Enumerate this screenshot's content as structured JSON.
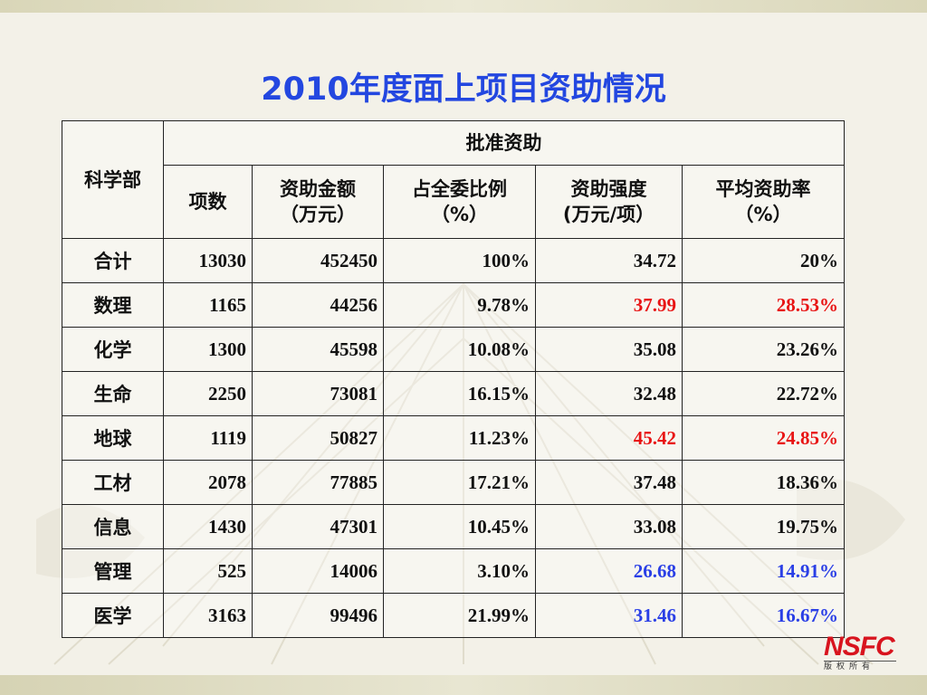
{
  "title": "2010年度面上项目资助情况",
  "table": {
    "corner_header": "科学部",
    "group_header": "批准资助",
    "columns": [
      {
        "line1": "项数",
        "line2": ""
      },
      {
        "line1": "资助金额",
        "line2": "（万元）"
      },
      {
        "line1": "占全委比例",
        "line2": "（%）"
      },
      {
        "line1": "资助强度",
        "line2": "(万元/项）"
      },
      {
        "line1": "平均资助率",
        "line2": "（%）"
      }
    ],
    "rows": [
      {
        "dept": "合计",
        "count": "13030",
        "amount": "452450",
        "share": "100%",
        "intensity": "34.72",
        "rate": "20%"
      },
      {
        "dept": "数理",
        "count": "1165",
        "amount": "44256",
        "share": "9.78%",
        "intensity": "37.99",
        "rate": "28.53%"
      },
      {
        "dept": "化学",
        "count": "1300",
        "amount": "45598",
        "share": "10.08%",
        "intensity": "35.08",
        "rate": "23.26%"
      },
      {
        "dept": "生命",
        "count": "2250",
        "amount": "73081",
        "share": "16.15%",
        "intensity": "32.48",
        "rate": "22.72%"
      },
      {
        "dept": "地球",
        "count": "1119",
        "amount": "50827",
        "share": "11.23%",
        "intensity": "45.42",
        "rate": "24.85%"
      },
      {
        "dept": "工材",
        "count": "2078",
        "amount": "77885",
        "share": "17.21%",
        "intensity": "37.48",
        "rate": "18.36%"
      },
      {
        "dept": "信息",
        "count": "1430",
        "amount": "47301",
        "share": "10.45%",
        "intensity": "33.08",
        "rate": "19.75%"
      },
      {
        "dept": "管理",
        "count": "525",
        "amount": "14006",
        "share": "3.10%",
        "intensity": "26.68",
        "rate": "14.91%"
      },
      {
        "dept": "医学",
        "count": "3163",
        "amount": "99496",
        "share": "21.99%",
        "intensity": "31.46",
        "rate": "16.67%"
      }
    ]
  },
  "highlight_colors": {
    "above": "#e81414",
    "below": "#2a3fe6"
  },
  "logo": {
    "text": "NSFC",
    "subtitle": "版权所有"
  }
}
